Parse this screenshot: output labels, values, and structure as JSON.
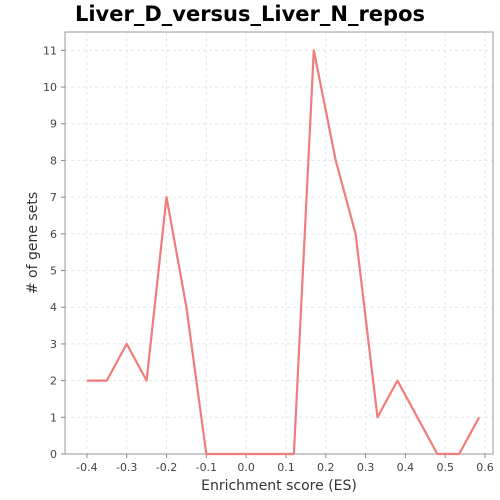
{
  "chart_data": {
    "type": "line",
    "title": "Liver_D_versus_Liver_N_repos",
    "xlabel": "Enrichment score (ES)",
    "ylabel": "# of gene sets",
    "xlim": [
      -0.455,
      0.62
    ],
    "ylim": [
      0,
      11.5
    ],
    "xticks": [
      "-0.4",
      "-0.3",
      "-0.2",
      "-0.1",
      "0.0",
      "0.1",
      "0.2",
      "0.3",
      "0.4",
      "0.5",
      "0.6"
    ],
    "yticks": [
      "0",
      "1",
      "2",
      "3",
      "4",
      "5",
      "6",
      "7",
      "8",
      "9",
      "10",
      "11"
    ],
    "grid": true,
    "series": [
      {
        "color": "#f07c7c",
        "x": [
          -0.4,
          -0.35,
          -0.3,
          -0.25,
          -0.2,
          -0.15,
          -0.1,
          -0.05,
          0.0,
          0.05,
          0.12,
          0.17,
          0.225,
          0.275,
          0.33,
          0.38,
          0.43,
          0.48,
          0.535,
          0.585
        ],
        "y": [
          2,
          2,
          3,
          2,
          7,
          4,
          0,
          0,
          0,
          0,
          0,
          11,
          8,
          6,
          1,
          2,
          1,
          0,
          0,
          1
        ]
      }
    ]
  }
}
